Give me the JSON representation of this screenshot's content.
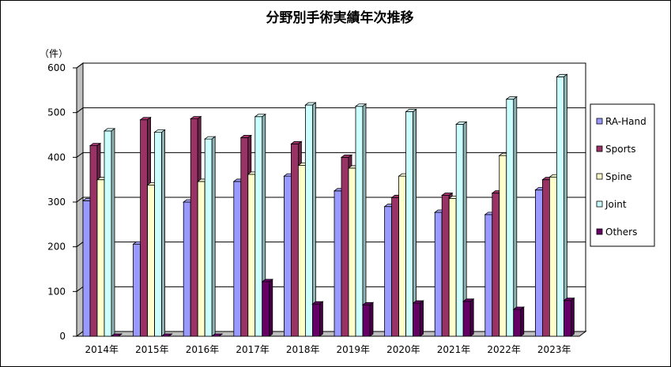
{
  "chart_data": {
    "type": "bar",
    "title": "分野別手術実績年次推移",
    "ylabel": "（件）",
    "xlabel": "",
    "ylim": [
      0,
      600
    ],
    "yticks": [
      0,
      100,
      200,
      300,
      400,
      500,
      600
    ],
    "grid": true,
    "legend_position": "right",
    "categories": [
      "2014年",
      "2015年",
      "2016年",
      "2017年",
      "2018年",
      "2019年",
      "2020年",
      "2021年",
      "2022年",
      "2023年"
    ],
    "series": [
      {
        "name": "RA-Hand",
        "color": "#9999ff",
        "values": [
          303,
          206,
          300,
          346,
          358,
          325,
          290,
          277,
          272,
          327
        ]
      },
      {
        "name": "Sports",
        "color": "#993366",
        "values": [
          426,
          484,
          486,
          444,
          430,
          400,
          310,
          315,
          320,
          350
        ]
      },
      {
        "name": "Spine",
        "color": "#ffffcc",
        "values": [
          350,
          338,
          346,
          362,
          382,
          376,
          358,
          308,
          404,
          356
        ]
      },
      {
        "name": "Joint",
        "color": "#ccffff",
        "values": [
          459,
          456,
          441,
          491,
          517,
          514,
          502,
          474,
          530,
          580
        ]
      },
      {
        "name": "Others",
        "color": "#660066",
        "values": [
          0,
          0,
          0,
          122,
          72,
          70,
          74,
          78,
          60,
          80
        ]
      }
    ]
  }
}
